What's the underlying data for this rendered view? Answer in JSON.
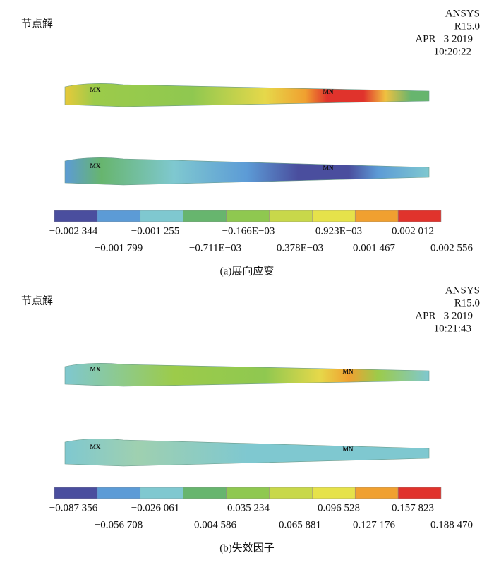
{
  "panels": [
    {
      "node_label": "节点解",
      "software": "ANSYS",
      "version": "R15.0",
      "date": "APR   3 2019",
      "time": "10:20:22",
      "blades": [
        {
          "max_label": "MX",
          "min_label": "MN"
        },
        {
          "max_label": "MX",
          "min_label": "MN"
        }
      ],
      "legend_labels": [
        "−0.002 344",
        "−0.001 799",
        "−0.001 255",
        "−0.711E−03",
        "−0.166E−03",
        "0.378E−03",
        "0.923E−03",
        "0.001 467",
        "0.002 012",
        "0.002 556"
      ],
      "caption": "(a)展向应变"
    },
    {
      "node_label": "节点解",
      "software": "ANSYS",
      "version": "R15.0",
      "date": "APR   3 2019",
      "time": "10:21:43",
      "blades": [
        {
          "max_label": "MX",
          "min_label": "MN"
        },
        {
          "max_label": "MX",
          "min_label": "MN"
        }
      ],
      "legend_labels": [
        "−0.087 356",
        "−0.056 708",
        "−0.026 061",
        "0.004 586",
        "0.035 234",
        "0.065 881",
        "0.096 528",
        "0.127 176",
        "0.157 823",
        "0.188 470"
      ],
      "caption": "(b)失效因子"
    }
  ]
}
